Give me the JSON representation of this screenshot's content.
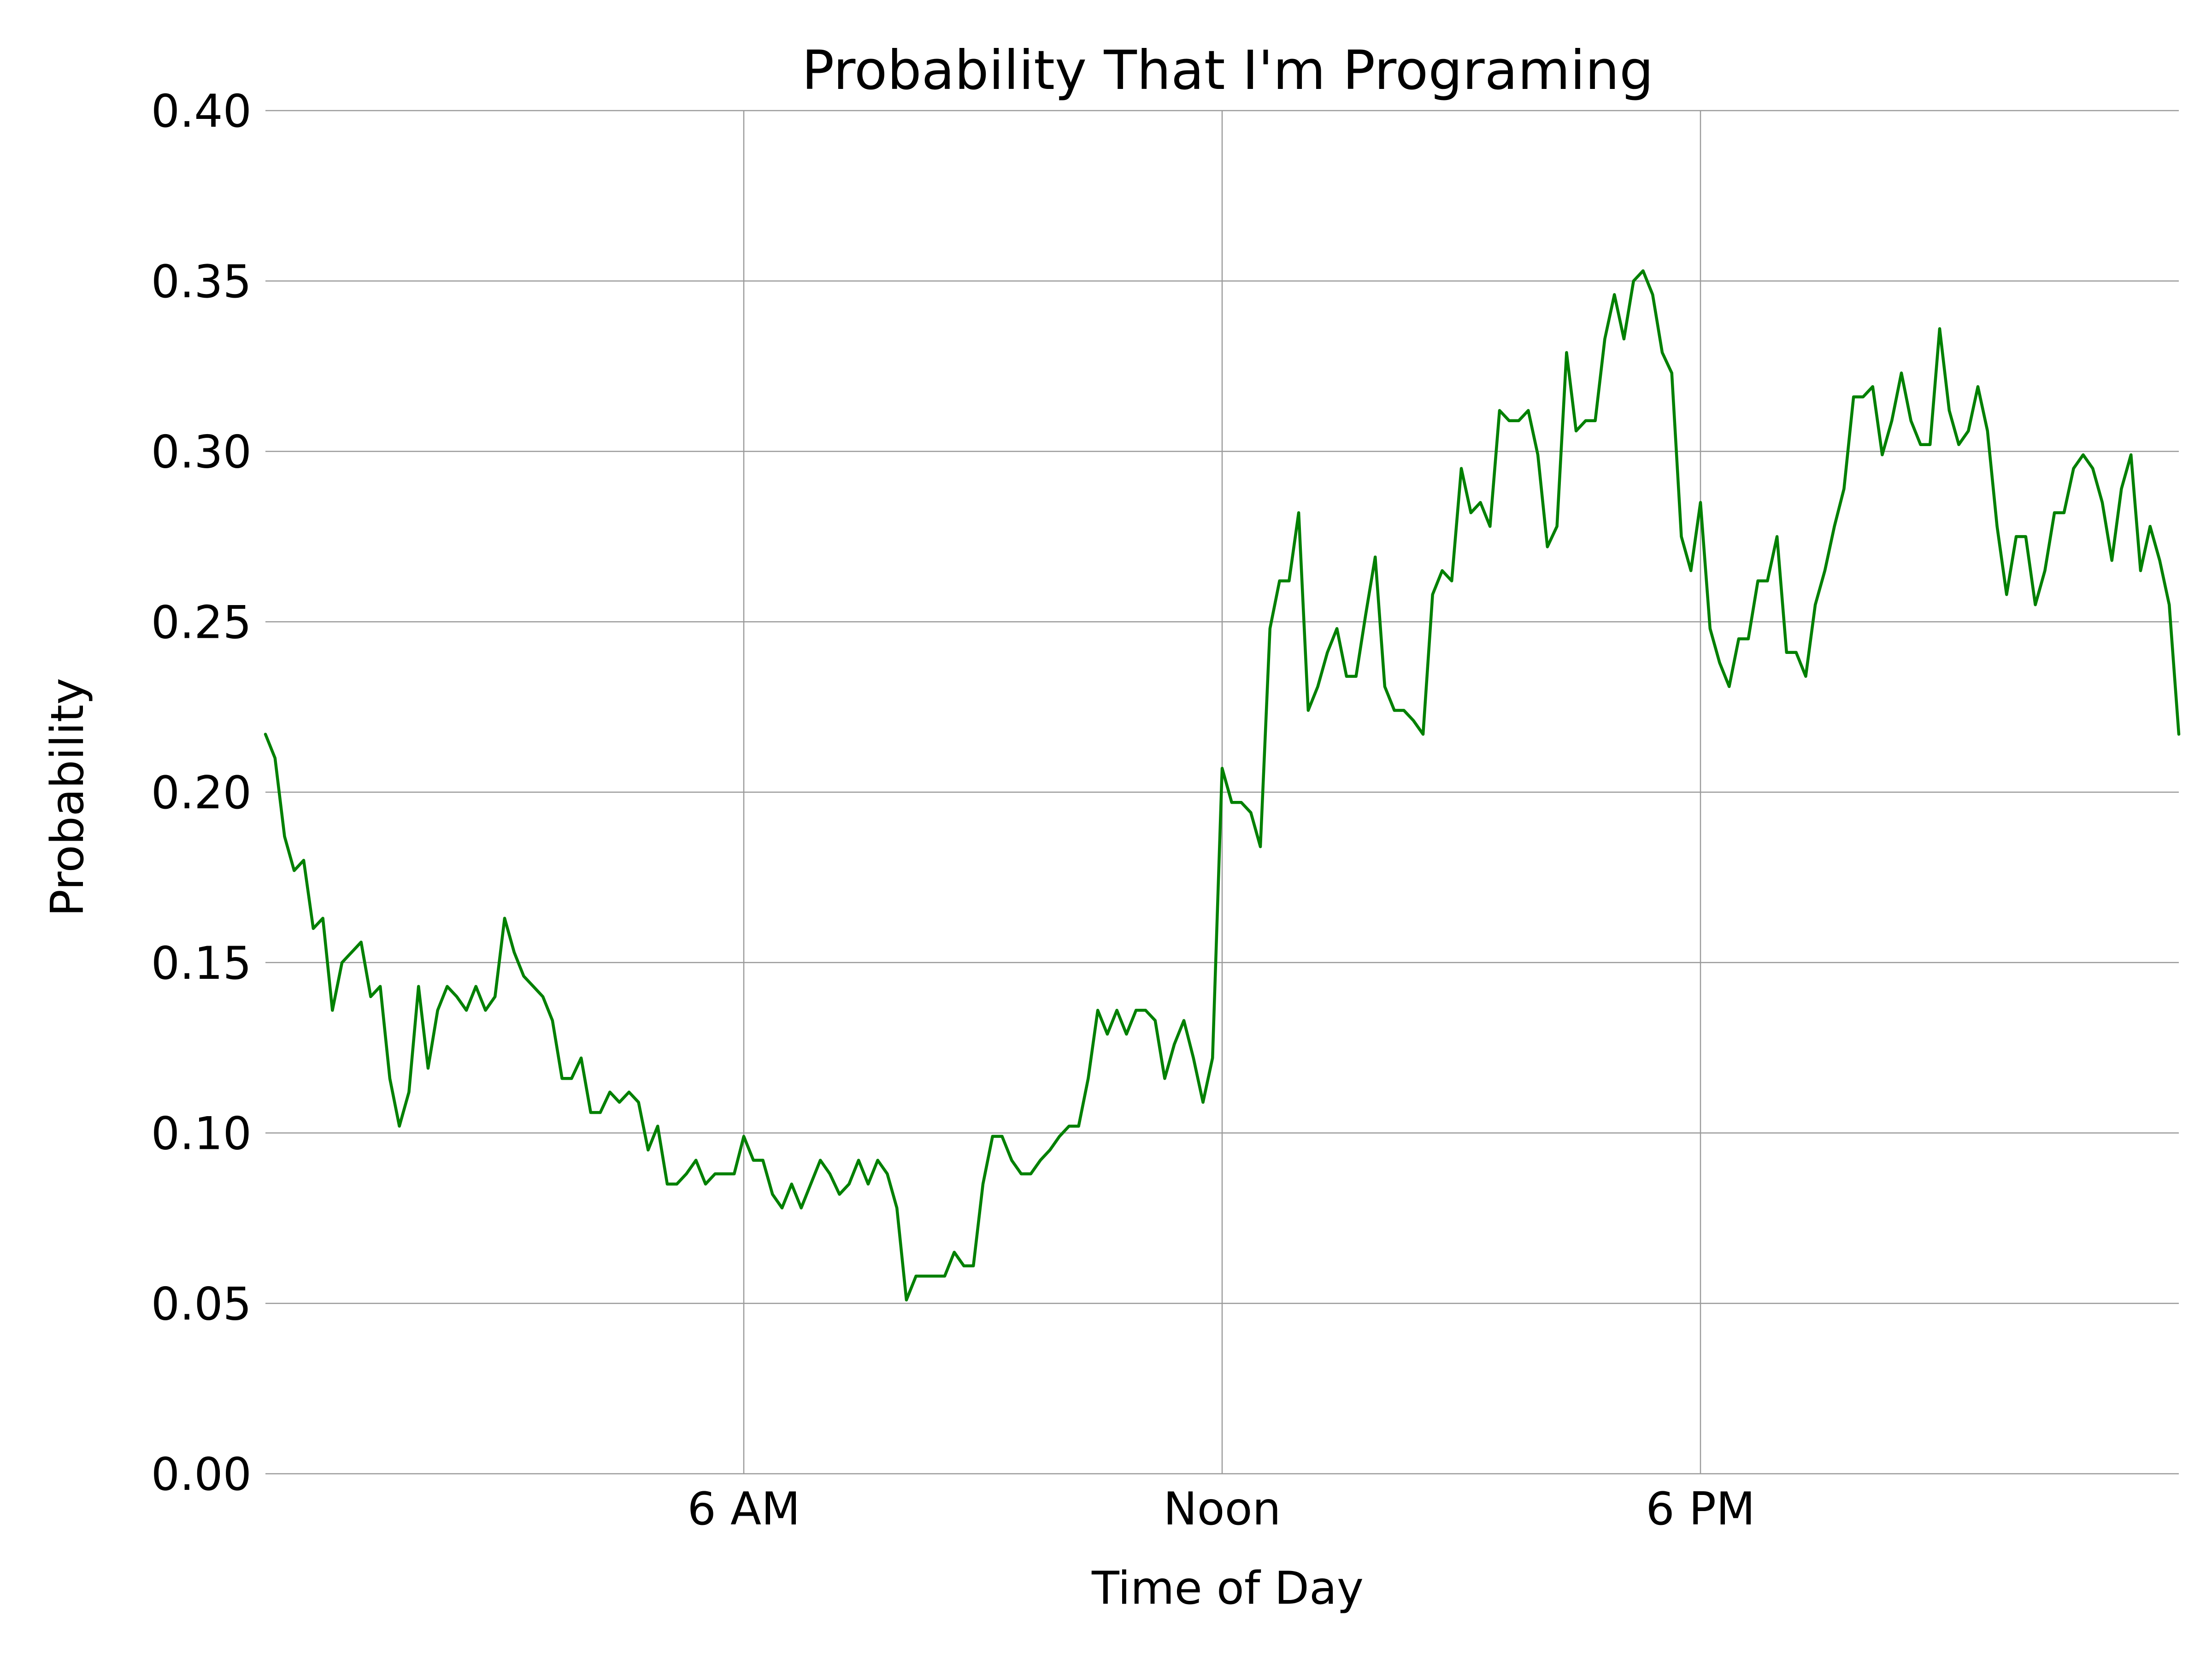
{
  "chart_data": {
    "type": "line",
    "title": "Probability That I'm Programing",
    "xlabel": "Time of Day",
    "ylabel": "Probability",
    "xlim": [
      0,
      24
    ],
    "ylim": [
      0,
      0.4
    ],
    "x_ticks": [
      {
        "value": 6,
        "label": "6 AM"
      },
      {
        "value": 12,
        "label": "Noon"
      },
      {
        "value": 18,
        "label": "6 PM"
      }
    ],
    "y_ticks": [
      {
        "value": 0.0,
        "label": "0.00"
      },
      {
        "value": 0.05,
        "label": "0.05"
      },
      {
        "value": 0.1,
        "label": "0.10"
      },
      {
        "value": 0.15,
        "label": "0.15"
      },
      {
        "value": 0.2,
        "label": "0.20"
      },
      {
        "value": 0.25,
        "label": "0.25"
      },
      {
        "value": 0.3,
        "label": "0.30"
      },
      {
        "value": 0.35,
        "label": "0.35"
      },
      {
        "value": 0.4,
        "label": "0.40"
      }
    ],
    "grid": true,
    "series": [
      {
        "color": "#008000",
        "x": [
          0,
          0.12,
          0.24,
          0.36,
          0.48,
          0.6,
          0.72,
          0.84,
          0.96,
          1.08,
          1.2,
          1.32,
          1.44,
          1.56,
          1.68,
          1.8,
          1.92,
          2.04,
          2.16,
          2.28,
          2.4,
          2.52,
          2.64,
          2.76,
          2.88,
          3.0,
          3.12,
          3.24,
          3.36,
          3.48,
          3.6,
          3.72,
          3.84,
          3.96,
          4.08,
          4.2,
          4.32,
          4.44,
          4.56,
          4.68,
          4.8,
          4.92,
          5.04,
          5.16,
          5.28,
          5.4,
          5.52,
          5.64,
          5.76,
          5.88,
          6.0,
          6.12,
          6.24,
          6.36,
          6.48,
          6.6,
          6.72,
          6.84,
          6.96,
          7.08,
          7.2,
          7.32,
          7.44,
          7.56,
          7.68,
          7.8,
          7.92,
          8.04,
          8.16,
          8.28,
          8.4,
          8.52,
          8.64,
          8.76,
          8.88,
          9.0,
          9.12,
          9.24,
          9.36,
          9.48,
          9.6,
          9.72,
          9.84,
          9.96,
          10.08,
          10.2,
          10.32,
          10.44,
          10.56,
          10.68,
          10.8,
          10.92,
          11.04,
          11.16,
          11.28,
          11.4,
          11.52,
          11.64,
          11.76,
          11.88,
          12.0,
          12.12,
          12.24,
          12.36,
          12.48,
          12.6,
          12.72,
          12.84,
          12.96,
          13.08,
          13.2,
          13.32,
          13.44,
          13.56,
          13.68,
          13.8,
          13.92,
          14.04,
          14.16,
          14.28,
          14.4,
          14.52,
          14.64,
          14.76,
          14.88,
          15.0,
          15.12,
          15.24,
          15.36,
          15.48,
          15.6,
          15.72,
          15.84,
          15.96,
          16.08,
          16.2,
          16.32,
          16.44,
          16.56,
          16.68,
          16.8,
          16.92,
          17.04,
          17.16,
          17.28,
          17.4,
          17.52,
          17.64,
          17.76,
          17.88,
          18.0,
          18.12,
          18.24,
          18.36,
          18.48,
          18.6,
          18.72,
          18.84,
          18.96,
          19.08,
          19.2,
          19.32,
          19.44,
          19.56,
          19.68,
          19.8,
          19.92,
          20.04,
          20.16,
          20.28,
          20.4,
          20.52,
          20.64,
          20.76,
          20.88,
          21.0,
          21.12,
          21.24,
          21.36,
          21.48,
          21.6,
          21.72,
          21.84,
          21.96,
          22.08,
          22.2,
          22.32,
          22.44,
          22.56,
          22.68,
          22.8,
          22.92,
          23.04,
          23.16,
          23.28,
          23.4,
          23.52,
          23.64,
          23.76,
          23.88,
          24.0
        ],
        "values": [
          0.217,
          0.21,
          0.187,
          0.177,
          0.18,
          0.16,
          0.163,
          0.136,
          0.15,
          0.153,
          0.156,
          0.14,
          0.143,
          0.116,
          0.102,
          0.112,
          0.143,
          0.119,
          0.136,
          0.143,
          0.14,
          0.136,
          0.143,
          0.136,
          0.14,
          0.163,
          0.153,
          0.146,
          0.143,
          0.14,
          0.133,
          0.116,
          0.116,
          0.122,
          0.106,
          0.106,
          0.112,
          0.109,
          0.112,
          0.109,
          0.095,
          0.102,
          0.085,
          0.085,
          0.088,
          0.092,
          0.085,
          0.088,
          0.088,
          0.088,
          0.099,
          0.092,
          0.092,
          0.082,
          0.078,
          0.085,
          0.078,
          0.085,
          0.092,
          0.088,
          0.082,
          0.085,
          0.092,
          0.085,
          0.092,
          0.088,
          0.078,
          0.051,
          0.058,
          0.058,
          0.058,
          0.058,
          0.065,
          0.061,
          0.061,
          0.085,
          0.099,
          0.099,
          0.092,
          0.088,
          0.088,
          0.092,
          0.095,
          0.099,
          0.102,
          0.102,
          0.116,
          0.136,
          0.129,
          0.136,
          0.129,
          0.136,
          0.136,
          0.133,
          0.116,
          0.126,
          0.133,
          0.122,
          0.109,
          0.122,
          0.207,
          0.197,
          0.197,
          0.194,
          0.184,
          0.248,
          0.262,
          0.262,
          0.282,
          0.224,
          0.231,
          0.241,
          0.248,
          0.234,
          0.234,
          0.252,
          0.269,
          0.231,
          0.224,
          0.224,
          0.221,
          0.217,
          0.258,
          0.265,
          0.262,
          0.295,
          0.282,
          0.285,
          0.278,
          0.312,
          0.309,
          0.309,
          0.312,
          0.299,
          0.272,
          0.278,
          0.329,
          0.306,
          0.309,
          0.309,
          0.333,
          0.346,
          0.333,
          0.35,
          0.353,
          0.346,
          0.329,
          0.323,
          0.275,
          0.265,
          0.285,
          0.248,
          0.238,
          0.231,
          0.245,
          0.245,
          0.262,
          0.262,
          0.275,
          0.241,
          0.241,
          0.234,
          0.255,
          0.265,
          0.278,
          0.289,
          0.316,
          0.316,
          0.319,
          0.299,
          0.309,
          0.323,
          0.309,
          0.302,
          0.302,
          0.336,
          0.312,
          0.302,
          0.306,
          0.319,
          0.306,
          0.278,
          0.258,
          0.275,
          0.275,
          0.255,
          0.265,
          0.282,
          0.282,
          0.295,
          0.299,
          0.295,
          0.285,
          0.268,
          0.289,
          0.299,
          0.265,
          0.278,
          0.268,
          0.255,
          0.217
        ]
      }
    ]
  }
}
